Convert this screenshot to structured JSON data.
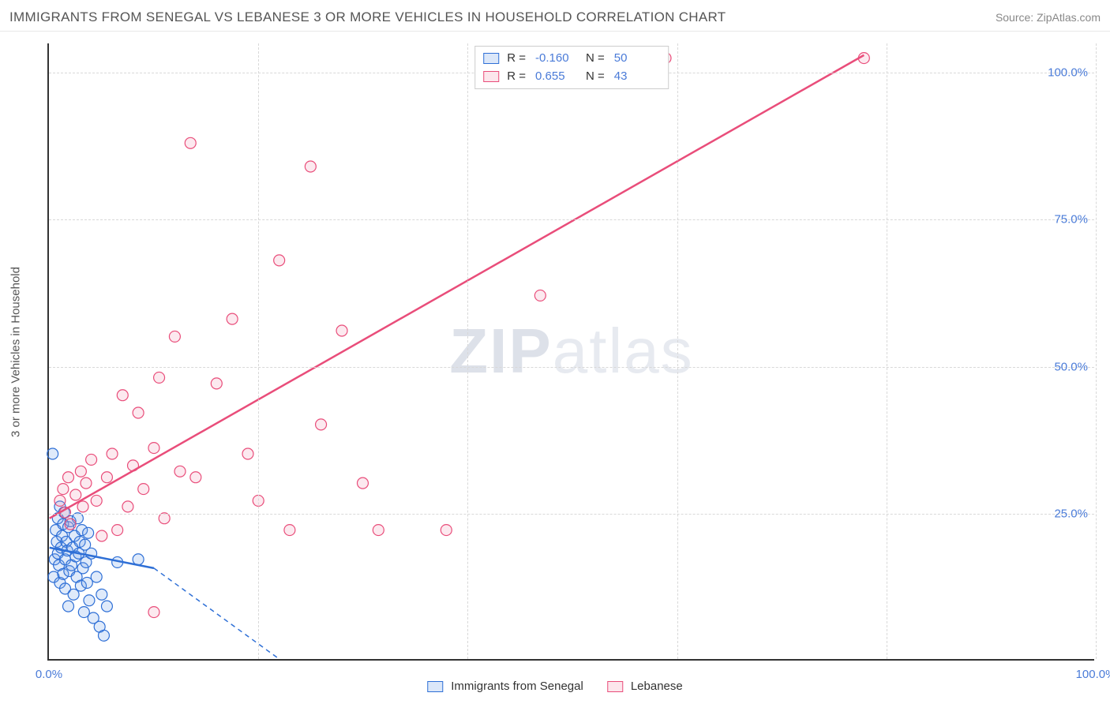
{
  "header": {
    "title": "IMMIGRANTS FROM SENEGAL VS LEBANESE 3 OR MORE VEHICLES IN HOUSEHOLD CORRELATION CHART",
    "source": "Source: ZipAtlas.com"
  },
  "watermark": {
    "text_bold": "ZIP",
    "text_light": "atlas"
  },
  "chart": {
    "type": "scatter",
    "x_label": "",
    "y_label": "3 or more Vehicles in Household",
    "xlim": [
      0,
      100
    ],
    "ylim": [
      0,
      105
    ],
    "xticks": [
      0,
      20,
      40,
      60,
      80,
      100
    ],
    "xtick_labels": [
      "0.0%",
      "",
      "",
      "",
      "",
      "100.0%"
    ],
    "yticks": [
      25,
      50,
      75,
      100
    ],
    "ytick_labels": [
      "25.0%",
      "50.0%",
      "75.0%",
      "100.0%"
    ],
    "background_color": "#ffffff",
    "grid_color": "#d8d8d8",
    "axis_color": "#333333",
    "label_color": "#4a7bd8",
    "marker_radius": 7,
    "marker_stroke_width": 1.2,
    "marker_fill_opacity": 0.22,
    "series": [
      {
        "name": "Immigrants from Senegal",
        "color_stroke": "#2e6fd6",
        "color_fill": "#6fa0e8",
        "r_value": "-0.160",
        "n_value": "50",
        "trend": {
          "x1": 0,
          "y1": 19,
          "x2": 10,
          "y2": 15.5,
          "extrap_x2": 22,
          "extrap_y2": 0,
          "width": 2.5
        },
        "points": [
          [
            0.3,
            35
          ],
          [
            0.4,
            14
          ],
          [
            0.5,
            17
          ],
          [
            0.6,
            22
          ],
          [
            0.7,
            20
          ],
          [
            0.8,
            18
          ],
          [
            0.8,
            24
          ],
          [
            0.9,
            16
          ],
          [
            1.0,
            13
          ],
          [
            1.0,
            26
          ],
          [
            1.1,
            19
          ],
          [
            1.2,
            21
          ],
          [
            1.3,
            14.5
          ],
          [
            1.3,
            23
          ],
          [
            1.4,
            25
          ],
          [
            1.5,
            17
          ],
          [
            1.5,
            12
          ],
          [
            1.6,
            20
          ],
          [
            1.7,
            18.5
          ],
          [
            1.8,
            22.5
          ],
          [
            1.8,
            9
          ],
          [
            1.9,
            15
          ],
          [
            2.0,
            23.5
          ],
          [
            2.1,
            16
          ],
          [
            2.2,
            19
          ],
          [
            2.3,
            11
          ],
          [
            2.4,
            21
          ],
          [
            2.5,
            17.5
          ],
          [
            2.6,
            14
          ],
          [
            2.7,
            24
          ],
          [
            2.8,
            18
          ],
          [
            2.9,
            20
          ],
          [
            3.0,
            12.5
          ],
          [
            3.1,
            22
          ],
          [
            3.2,
            15.5
          ],
          [
            3.3,
            8
          ],
          [
            3.4,
            19.5
          ],
          [
            3.5,
            16.5
          ],
          [
            3.6,
            13
          ],
          [
            3.7,
            21.5
          ],
          [
            3.8,
            10
          ],
          [
            4.0,
            18
          ],
          [
            4.2,
            7
          ],
          [
            4.5,
            14
          ],
          [
            4.8,
            5.5
          ],
          [
            5.0,
            11
          ],
          [
            5.2,
            4
          ],
          [
            5.5,
            9
          ],
          [
            6.5,
            16.5
          ],
          [
            8.5,
            17
          ]
        ]
      },
      {
        "name": "Lebanese",
        "color_stroke": "#e94d7a",
        "color_fill": "#f39ab5",
        "r_value": "0.655",
        "n_value": "43",
        "trend": {
          "x1": 0,
          "y1": 24,
          "x2": 78,
          "y2": 103,
          "width": 2.5
        },
        "points": [
          [
            1.0,
            27
          ],
          [
            1.3,
            29
          ],
          [
            1.5,
            25
          ],
          [
            1.8,
            31
          ],
          [
            2.0,
            23
          ],
          [
            2.5,
            28
          ],
          [
            3.0,
            32
          ],
          [
            3.2,
            26
          ],
          [
            3.5,
            30
          ],
          [
            4.0,
            34
          ],
          [
            4.5,
            27
          ],
          [
            5.0,
            21
          ],
          [
            5.5,
            31
          ],
          [
            6.0,
            35
          ],
          [
            6.5,
            22
          ],
          [
            7.0,
            45
          ],
          [
            7.5,
            26
          ],
          [
            8.0,
            33
          ],
          [
            8.5,
            42
          ],
          [
            9.0,
            29
          ],
          [
            10.0,
            36
          ],
          [
            10.5,
            48
          ],
          [
            11.0,
            24
          ],
          [
            12.0,
            55
          ],
          [
            12.5,
            32
          ],
          [
            13.5,
            88
          ],
          [
            14.0,
            31
          ],
          [
            16.0,
            47
          ],
          [
            17.5,
            58
          ],
          [
            19.0,
            35
          ],
          [
            20.0,
            27
          ],
          [
            22.0,
            68
          ],
          [
            23.0,
            22
          ],
          [
            25.0,
            84
          ],
          [
            26.0,
            40
          ],
          [
            28.0,
            56
          ],
          [
            30.0,
            30
          ],
          [
            31.5,
            22
          ],
          [
            38.0,
            22
          ],
          [
            47.0,
            62
          ],
          [
            59.0,
            102.5
          ],
          [
            78.0,
            102.5
          ],
          [
            10.0,
            8
          ]
        ]
      }
    ],
    "legend_top": {
      "r_label": "R =",
      "n_label": "N ="
    },
    "legend_bottom_series": [
      "Immigrants from Senegal",
      "Lebanese"
    ]
  }
}
